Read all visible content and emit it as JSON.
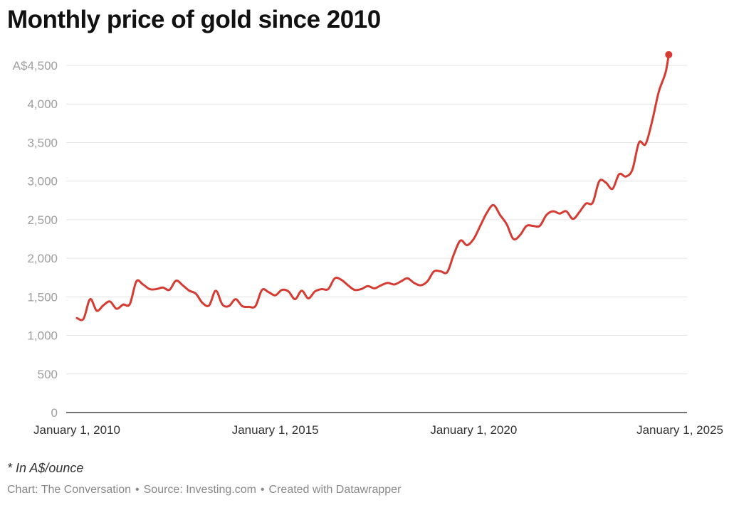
{
  "title": "Monthly price of gold since 2010",
  "note": "* In A$/ounce",
  "footer": {
    "chart_credit": "Chart: The Conversation",
    "source": "Source: Investing.com",
    "created": "Created with Datawrapper",
    "separator": "•"
  },
  "colors": {
    "line": "#d63b32",
    "grid": "#e3e3e3",
    "axis": "#222222",
    "tick_label": "#9e9e9e",
    "x_label": "#333333"
  },
  "chart_data": {
    "type": "line",
    "title": "Monthly price of gold since 2010",
    "xlabel": "",
    "ylabel": "",
    "unit": "A$/ounce",
    "ylim": [
      0,
      4500
    ],
    "xlim": [
      "2010-01-01",
      "2025-01-01"
    ],
    "grid": "horizontal",
    "y_ticks": [
      {
        "value": 0,
        "label": "0"
      },
      {
        "value": 500,
        "label": "500"
      },
      {
        "value": 1000,
        "label": "1,000"
      },
      {
        "value": 1500,
        "label": "1,500"
      },
      {
        "value": 2000,
        "label": "2,000"
      },
      {
        "value": 2500,
        "label": "2,500"
      },
      {
        "value": 3000,
        "label": "3,000"
      },
      {
        "value": 3500,
        "label": "3,500"
      },
      {
        "value": 4000,
        "label": "4,000"
      },
      {
        "value": 4500,
        "label": "A$4,500"
      }
    ],
    "x_ticks": [
      {
        "date": "2010-01-01",
        "label": "January 1, 2010"
      },
      {
        "date": "2015-01-01",
        "label": "January 1, 2015"
      },
      {
        "date": "2020-01-01",
        "label": "January 1, 2020"
      },
      {
        "date": "2025-01-01",
        "label": "January 1, 2025"
      }
    ],
    "series": [
      {
        "x": [
          "2010-01",
          "2010-03",
          "2010-05",
          "2010-07",
          "2010-09",
          "2010-11",
          "2011-01",
          "2011-03",
          "2011-05",
          "2011-07",
          "2011-09",
          "2011-11",
          "2012-01",
          "2012-03",
          "2012-05",
          "2012-07",
          "2012-09",
          "2012-11",
          "2013-01",
          "2013-03",
          "2013-05",
          "2013-07",
          "2013-09",
          "2013-11",
          "2014-01",
          "2014-03",
          "2014-05",
          "2014-07",
          "2014-09",
          "2014-11",
          "2015-01",
          "2015-03",
          "2015-05",
          "2015-07",
          "2015-09",
          "2015-11",
          "2016-01",
          "2016-03",
          "2016-05",
          "2016-07",
          "2016-09",
          "2016-11",
          "2017-01",
          "2017-03",
          "2017-05",
          "2017-07",
          "2017-09",
          "2017-11",
          "2018-01",
          "2018-03",
          "2018-05",
          "2018-07",
          "2018-09",
          "2018-11",
          "2019-01",
          "2019-03",
          "2019-05",
          "2019-07",
          "2019-09",
          "2019-11",
          "2020-01",
          "2020-03",
          "2020-05",
          "2020-07",
          "2020-09",
          "2020-11",
          "2021-01",
          "2021-03",
          "2021-05",
          "2021-07",
          "2021-09",
          "2021-11",
          "2022-01",
          "2022-03",
          "2022-05",
          "2022-07",
          "2022-09",
          "2022-11",
          "2023-01",
          "2023-03",
          "2023-05",
          "2023-07",
          "2023-09",
          "2023-11",
          "2024-01",
          "2024-03",
          "2024-05",
          "2024-07",
          "2024-09",
          "2024-11",
          "2024-12"
        ],
        "y": [
          1225,
          1215,
          1470,
          1320,
          1390,
          1440,
          1345,
          1400,
          1405,
          1700,
          1660,
          1600,
          1600,
          1620,
          1590,
          1710,
          1650,
          1580,
          1540,
          1420,
          1390,
          1580,
          1400,
          1380,
          1470,
          1380,
          1370,
          1380,
          1590,
          1560,
          1520,
          1590,
          1570,
          1470,
          1580,
          1480,
          1570,
          1600,
          1600,
          1740,
          1720,
          1650,
          1590,
          1600,
          1640,
          1610,
          1650,
          1680,
          1660,
          1700,
          1740,
          1680,
          1650,
          1700,
          1830,
          1830,
          1820,
          2050,
          2230,
          2170,
          2250,
          2420,
          2590,
          2690,
          2560,
          2440,
          2250,
          2300,
          2420,
          2420,
          2420,
          2560,
          2610,
          2580,
          2610,
          2510,
          2600,
          2710,
          2720,
          3000,
          2980,
          2900,
          3090,
          3060,
          3150,
          3500,
          3480,
          3780,
          4160,
          4400,
          4640
        ]
      }
    ]
  }
}
